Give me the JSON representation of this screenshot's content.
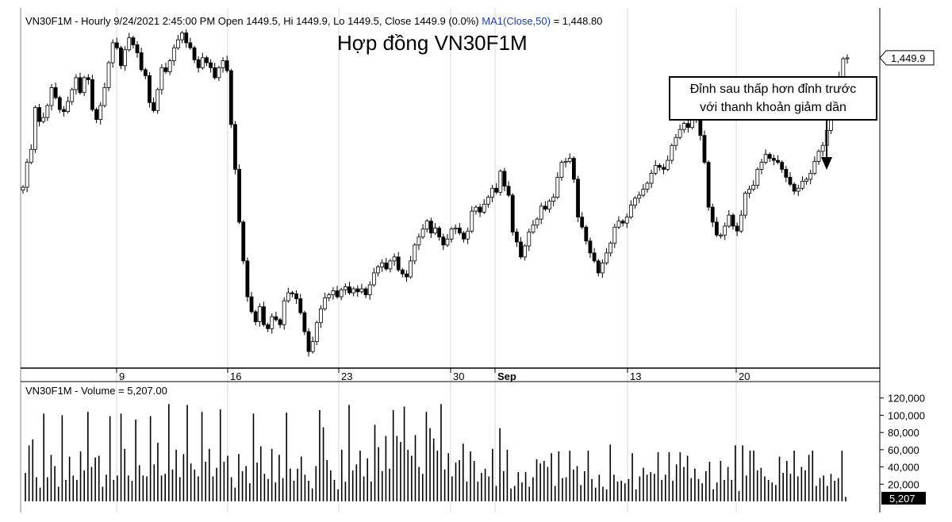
{
  "header": {
    "info": "VN30F1M - Hourly 9/24/2021 2:45:00 PM Open 1449.5, Hi 1449.9, Lo 1449.5, Close 1449.9 (0.0%)",
    "ma": "MA1(Close,50)",
    "ma_value": "= 1,448.80"
  },
  "title": "Hợp đồng VN30F1M",
  "annotation": {
    "line1": "Đỉnh sau thấp hơn đỉnh trước",
    "line2": "với thanh khoản giảm dần"
  },
  "volume_header": "VN30F1M - Volume = 5,207.00",
  "colors": {
    "text": "#000000",
    "grid": "#d9d9d9",
    "ma_label": "#1f3fa8"
  },
  "chart_data": [
    {
      "type": "candlestick",
      "x_tick_labels": [
        "9",
        "16",
        "23",
        "30",
        "Sep",
        "13",
        "20"
      ],
      "last_price_label": "1,449.9",
      "close_values": [
        1320,
        1345,
        1358,
        1400,
        1386,
        1390,
        1402,
        1420,
        1410,
        1398,
        1396,
        1406,
        1418,
        1430,
        1415,
        1430,
        1428,
        1398,
        1388,
        1402,
        1420,
        1445,
        1465,
        1460,
        1442,
        1458,
        1470,
        1463,
        1455,
        1438,
        1432,
        1405,
        1397,
        1418,
        1440,
        1436,
        1447,
        1460,
        1468,
        1475,
        1465,
        1460,
        1448,
        1440,
        1450,
        1445,
        1440,
        1430,
        1440,
        1447,
        1437,
        1383,
        1338,
        1285,
        1246,
        1210,
        1195,
        1185,
        1200,
        1182,
        1178,
        1190,
        1187,
        1182,
        1206,
        1214,
        1213,
        1208,
        1194,
        1175,
        1155,
        1165,
        1184,
        1198,
        1209,
        1212,
        1216,
        1210,
        1217,
        1220,
        1214,
        1218,
        1215,
        1218,
        1212,
        1222,
        1234,
        1240,
        1244,
        1238,
        1246,
        1250,
        1237,
        1233,
        1230,
        1246,
        1262,
        1270,
        1278,
        1286,
        1274,
        1279,
        1270,
        1262,
        1268,
        1278,
        1279,
        1274,
        1268,
        1276,
        1296,
        1300,
        1295,
        1303,
        1310,
        1319,
        1315,
        1336,
        1321,
        1312,
        1275,
        1265,
        1250,
        1261,
        1275,
        1282,
        1288,
        1301,
        1298,
        1306,
        1310,
        1330,
        1345,
        1346,
        1349,
        1328,
        1290,
        1280,
        1266,
        1254,
        1246,
        1234,
        1244,
        1254,
        1264,
        1280,
        1286,
        1284,
        1290,
        1302,
        1309,
        1312,
        1318,
        1324,
        1334,
        1342,
        1340,
        1338,
        1347,
        1362,
        1370,
        1378,
        1384,
        1380,
        1395,
        1388,
        1372,
        1345,
        1300,
        1285,
        1272,
        1272,
        1281,
        1292,
        1281,
        1276,
        1292,
        1314,
        1318,
        1322,
        1338,
        1345,
        1353,
        1349,
        1347,
        1345,
        1338,
        1330,
        1323,
        1316,
        1319,
        1326,
        1328,
        1334,
        1346,
        1356,
        1362,
        1377,
        1396,
        1416,
        1431,
        1449,
        1449.9
      ],
      "ylim": [
        1140,
        1500
      ]
    },
    {
      "type": "bar",
      "y_tick_labels": [
        "120,000",
        "100,000",
        "80,000",
        "60,000",
        "40,000",
        "20,000"
      ],
      "last_volume_label": "5,207",
      "values": [
        33000,
        65000,
        72000,
        28000,
        16000,
        102000,
        28000,
        54000,
        41000,
        17000,
        100000,
        25000,
        52000,
        30000,
        25000,
        58000,
        36000,
        104000,
        40000,
        51000,
        53000,
        17000,
        31000,
        99000,
        25000,
        30000,
        102000,
        61000,
        30000,
        24000,
        95000,
        42000,
        30000,
        29000,
        99000,
        43000,
        68000,
        30000,
        32000,
        113000,
        37000,
        60000,
        28000,
        55000,
        112000,
        44000,
        37000,
        29000,
        104000,
        46000,
        61000,
        29000,
        39000,
        107000,
        46000,
        53000,
        28000,
        16000,
        55000,
        35000,
        41000,
        21000,
        102000,
        45000,
        64000,
        32000,
        26000,
        61000,
        22000,
        54000,
        27000,
        103000,
        38000,
        24000,
        38000,
        52000,
        31000,
        24000,
        15000,
        41000,
        106000,
        86000,
        48000,
        36000,
        25000,
        14000,
        60000,
        23000,
        112000,
        36000,
        43000,
        59000,
        29000,
        50000,
        23000,
        89000,
        63000,
        35000,
        76000,
        38000,
        106000,
        76000,
        69000,
        110000,
        60000,
        53000,
        77000,
        40000,
        32000,
        104000,
        85000,
        73000,
        59000,
        113000,
        37000,
        56000,
        29000,
        45000,
        48000,
        67000,
        23000,
        58000,
        47000,
        23000,
        33000,
        38000,
        29000,
        61000,
        18000,
        85000,
        35000,
        60000,
        15000,
        18000,
        34000,
        22000,
        34000,
        17000,
        28000,
        49000,
        44000,
        47000,
        40000,
        56000,
        18000,
        58000,
        27000,
        28000,
        59000,
        37000,
        41000,
        19000,
        35000,
        59000,
        26000,
        16000,
        31000,
        17000,
        14000,
        66000,
        31000,
        23000,
        24000,
        21000,
        26000,
        56000,
        14000,
        29000,
        39000,
        31000,
        34000,
        32000,
        57000,
        25000,
        31000,
        57000,
        24000,
        43000,
        57000,
        40000,
        53000,
        27000,
        38000,
        26000,
        21000,
        35000,
        46000,
        14000,
        22000,
        47000,
        25000,
        40000,
        25000,
        65000,
        12000,
        65000,
        30000,
        59000,
        59000,
        36000,
        39000,
        29000,
        25000,
        22000,
        19000,
        52000,
        33000,
        47000,
        32000,
        59000,
        29000,
        40000,
        36000,
        54000,
        59000,
        18000,
        27000,
        30000,
        18000,
        32000,
        24000,
        27000,
        59000,
        5207
      ]
    }
  ]
}
